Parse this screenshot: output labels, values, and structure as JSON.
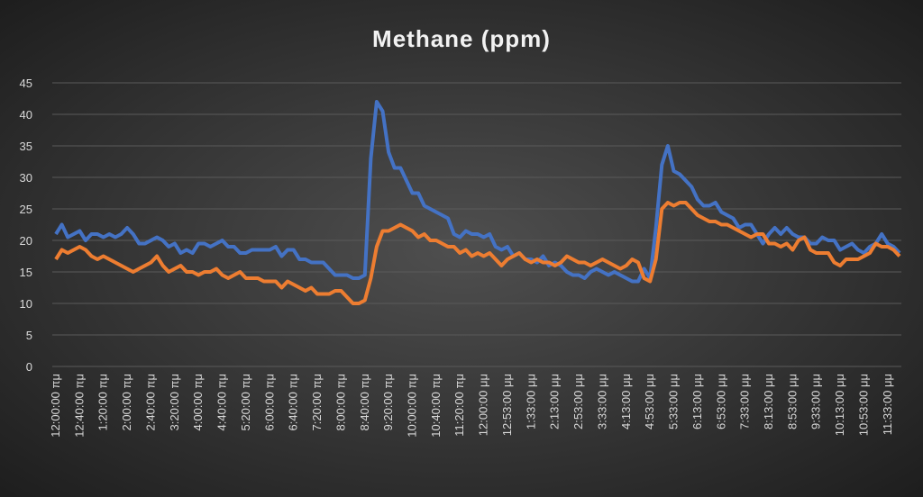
{
  "chart_data": {
    "type": "line",
    "title": "Methane (ppm)",
    "categories": [
      "12:00:00 πμ",
      null,
      null,
      null,
      "12:40:00 πμ",
      null,
      null,
      null,
      "1:20:00 πμ",
      null,
      null,
      null,
      "2:00:00 πμ",
      null,
      null,
      null,
      "2:40:00 πμ",
      null,
      null,
      null,
      "3:20:00 πμ",
      null,
      null,
      null,
      "4:00:00 πμ",
      null,
      null,
      null,
      "4:40:00 πμ",
      null,
      null,
      null,
      "5:20:00 πμ",
      null,
      null,
      null,
      "6:00:00 πμ",
      null,
      null,
      null,
      "6:40:00 πμ",
      null,
      null,
      null,
      "7:20:00 πμ",
      null,
      null,
      null,
      "8:00:00 πμ",
      null,
      null,
      null,
      "8:40:00 πμ",
      null,
      null,
      null,
      "9:20:00 πμ",
      null,
      null,
      null,
      "10:00:00 πμ",
      null,
      null,
      null,
      "10:40:00 πμ",
      null,
      null,
      null,
      "11:20:00 πμ",
      null,
      null,
      null,
      "12:00:00 μμ",
      null,
      null,
      null,
      "12:53:00 μμ",
      null,
      null,
      null,
      "1:33:00 μμ",
      null,
      null,
      null,
      "2:13:00 μμ",
      null,
      null,
      null,
      "2:53:00 μμ",
      null,
      null,
      null,
      "3:33:00 μμ",
      null,
      null,
      null,
      "4:13:00 μμ",
      null,
      null,
      null,
      "4:53:00 μμ",
      null,
      null,
      null,
      "5:33:00 μμ",
      null,
      null,
      null,
      "6:13:00 μμ",
      null,
      null,
      null,
      "6:53:00 μμ",
      null,
      null,
      null,
      "7:33:00 μμ",
      null,
      null,
      null,
      "8:13:00 μμ",
      null,
      null,
      null,
      "8:53:00 μμ",
      null,
      null,
      null,
      "9:33:00 μμ",
      null,
      null,
      null,
      "10:13:00 μμ",
      null,
      null,
      null,
      "10:53:00 μμ",
      null,
      null,
      null,
      "11:33:00 μμ",
      null,
      null
    ],
    "series": [
      {
        "color": "#4472c4",
        "values": [
          21,
          22.5,
          20.5,
          21,
          21.5,
          20,
          21,
          21,
          20.5,
          21,
          20.5,
          21,
          22,
          21,
          19.5,
          19.5,
          20,
          20.5,
          20,
          19,
          19.5,
          18,
          18.5,
          18,
          19.5,
          19.5,
          19,
          19.5,
          20,
          19,
          19,
          18,
          18,
          18.5,
          18.5,
          18.5,
          18.5,
          19,
          17.5,
          18.5,
          18.5,
          17,
          17,
          16.5,
          16.5,
          16.5,
          15.5,
          14.5,
          14.5,
          14.5,
          14,
          14,
          14.5,
          33,
          42,
          40.5,
          34,
          31.5,
          31.5,
          29.5,
          27.5,
          27.5,
          25.5,
          25,
          24.5,
          24,
          23.5,
          21,
          20.5,
          21.5,
          21,
          21,
          20.5,
          21,
          19,
          18.5,
          19,
          17.5,
          18,
          17,
          17,
          16.5,
          17.5,
          16,
          16.5,
          16,
          15,
          14.5,
          14.5,
          14,
          15,
          15.5,
          15,
          14.5,
          15,
          14.5,
          14,
          13.5,
          13.5,
          15.5,
          14,
          22,
          32,
          35,
          31,
          30.5,
          29.5,
          28.5,
          26.5,
          25.5,
          25.5,
          26,
          24.5,
          24,
          23.5,
          22,
          22.5,
          22.5,
          21,
          19.5,
          21,
          22,
          21,
          22,
          21,
          20.5,
          20.5,
          19.5,
          19.5,
          20.5,
          20,
          20,
          18.5,
          19,
          19.5,
          18.5,
          18,
          19,
          19.5,
          21,
          19.5,
          19,
          18
        ]
      },
      {
        "color": "#ed7d31",
        "values": [
          17,
          18.5,
          18,
          18.5,
          19,
          18.5,
          17.5,
          17,
          17.5,
          17,
          16.5,
          16,
          15.5,
          15,
          15.5,
          16,
          16.5,
          17.5,
          16,
          15,
          15.5,
          16,
          15,
          15,
          14.5,
          15,
          15,
          15.5,
          14.5,
          14,
          14.5,
          15,
          14,
          14,
          14,
          13.5,
          13.5,
          13.5,
          12.5,
          13.5,
          13,
          12.5,
          12,
          12.5,
          11.5,
          11.5,
          11.5,
          12,
          12,
          11,
          10,
          10,
          10.5,
          14,
          19,
          21.5,
          21.5,
          22,
          22.5,
          22,
          21.5,
          20.5,
          21,
          20,
          20,
          19.5,
          19,
          19,
          18,
          18.5,
          17.5,
          18,
          17.5,
          18,
          17,
          16,
          17,
          17.5,
          18,
          17,
          16.5,
          17,
          16.5,
          16.5,
          16,
          16.5,
          17.5,
          17,
          16.5,
          16.5,
          16,
          16.5,
          17,
          16.5,
          16,
          15.5,
          16,
          17,
          16.5,
          14,
          13.5,
          17,
          25,
          26,
          25.5,
          26,
          26,
          25,
          24,
          23.5,
          23,
          23,
          22.5,
          22.5,
          22,
          21.5,
          21,
          20.5,
          21,
          21,
          19.5,
          19.5,
          19,
          19.5,
          18.5,
          20,
          20.5,
          18.5,
          18,
          18,
          18,
          16.5,
          16,
          17,
          17,
          17,
          17.5,
          18,
          19.5,
          19,
          19,
          18.5,
          17.5
        ]
      }
    ],
    "ylim": [
      0,
      45
    ],
    "yticks": [
      0,
      5,
      10,
      15,
      20,
      25,
      30,
      35,
      40,
      45
    ],
    "grid": true
  }
}
